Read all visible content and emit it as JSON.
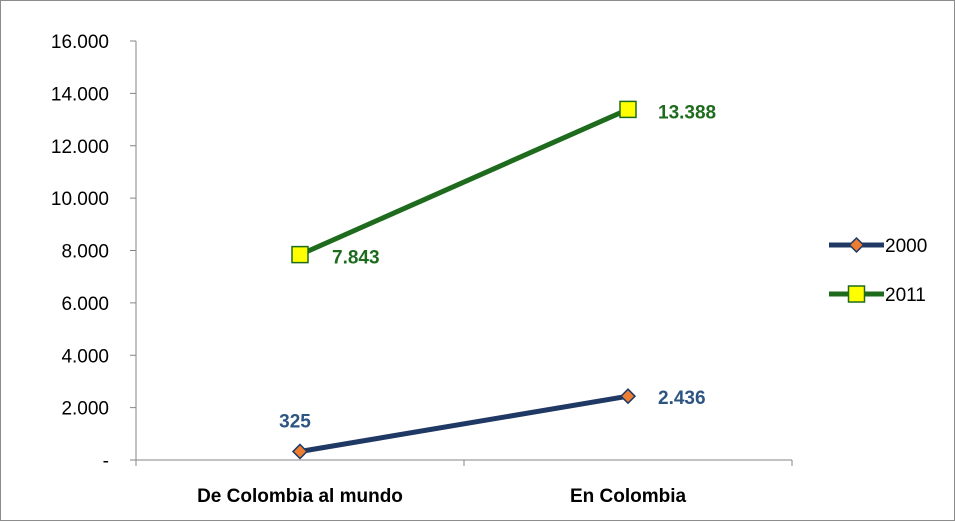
{
  "chart_data": {
    "type": "line",
    "categories": [
      "De Colombia al mundo",
      "En Colombia"
    ],
    "series": [
      {
        "name": "2000",
        "values": [
          325,
          2436
        ],
        "value_labels": [
          "325",
          "2.436"
        ],
        "line_color": "#1f3864",
        "marker": "diamond",
        "marker_fill": "#ed7d31",
        "label_color": "#2e5484"
      },
      {
        "name": "2011",
        "values": [
          7843,
          13388
        ],
        "value_labels": [
          "7.843",
          "13.388"
        ],
        "line_color": "#1e6b1e",
        "marker": "square",
        "marker_fill": "#ffff00",
        "label_color": "#1e6b1e"
      }
    ],
    "yticks": [
      0,
      2000,
      4000,
      6000,
      8000,
      10000,
      12000,
      14000,
      16000
    ],
    "ytick_labels": [
      "-",
      "2.000",
      "4.000",
      "6.000",
      "8.000",
      "10.000",
      "12.000",
      "14.000",
      "16.000"
    ],
    "ylim": [
      0,
      16000
    ],
    "title": "",
    "xlabel": "",
    "ylabel": "",
    "grid": false,
    "legend_position": "right"
  }
}
